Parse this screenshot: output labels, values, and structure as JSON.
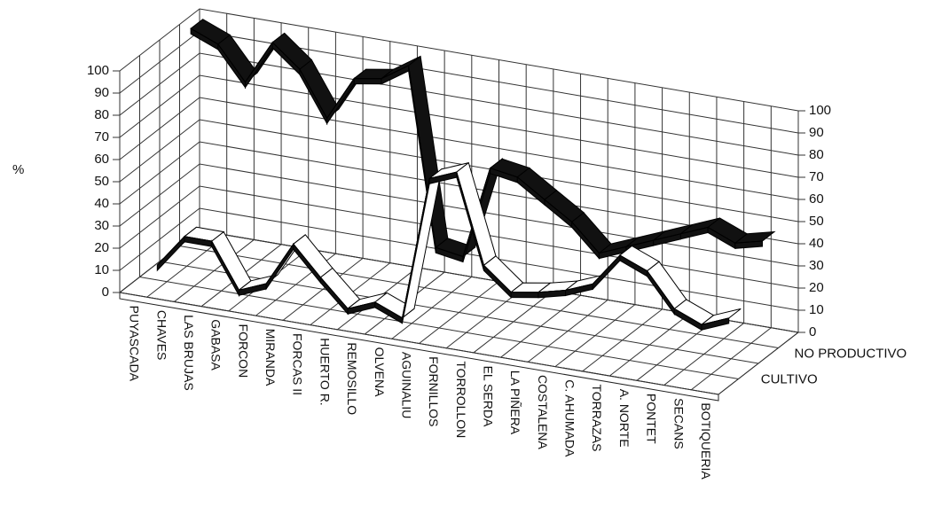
{
  "chart_data": {
    "type": "ribbon3d",
    "ylabel": "%",
    "categories": [
      "PUYASCADA",
      "CHAVES",
      "LAS BRUJAS",
      "GABASA",
      "FORCON",
      "MIRANDA",
      "FORCAS II",
      "HUERTO R.",
      "REMOSILLO",
      "OLVENA",
      "AGUINALIU",
      "FORNILLOS",
      "TORROLLON",
      "EL SERDA",
      "LA PIÑERA",
      "COSTALENA",
      "C. AHUMADA",
      "TORRAZAS",
      "A. NORTE",
      "PONTET",
      "SECANS",
      "BOTIQUERIA"
    ],
    "series": [
      {
        "name": "CULTIVO",
        "color": "#ffffff",
        "values": [
          5,
          20,
          20,
          0,
          5,
          25,
          12,
          0,
          5,
          0,
          65,
          70,
          30,
          20,
          22,
          25,
          30,
          45,
          40,
          25,
          20,
          25
        ]
      },
      {
        "name": "NO PRODUCTIVO",
        "color": "#111111",
        "values": [
          100,
          95,
          80,
          100,
          90,
          70,
          90,
          92,
          100,
          20,
          18,
          60,
          58,
          50,
          42,
          30,
          35,
          40,
          45,
          50,
          45,
          48
        ]
      }
    ],
    "ylim": [
      0,
      100
    ],
    "yticks": [
      0,
      10,
      20,
      30,
      40,
      50,
      60,
      70,
      80,
      90,
      100
    ],
    "grid": true
  }
}
